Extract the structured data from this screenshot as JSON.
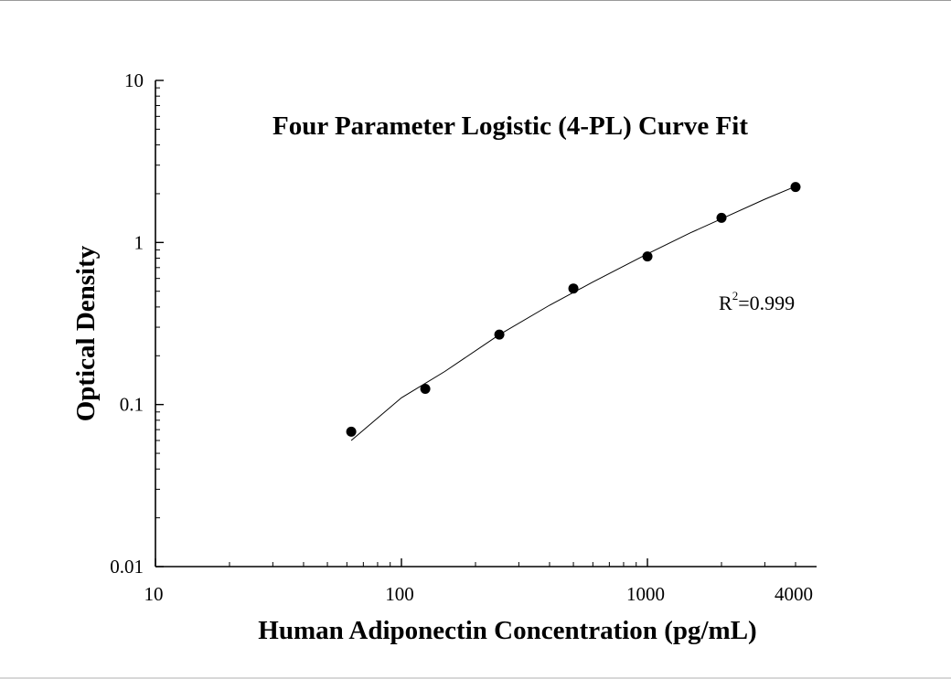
{
  "chart_data": {
    "type": "scatter",
    "title": "Four Parameter Logistic (4-PL) Curve Fit",
    "xlabel": "Human Adiponectin Concentration (pg/mL)",
    "ylabel": "Optical Density",
    "x_scale": "log",
    "y_scale": "log",
    "xlim": [
      10,
      4000
    ],
    "ylim": [
      0.01,
      10
    ],
    "x_ticks": [
      {
        "value": 10,
        "label": "10"
      },
      {
        "value": 100,
        "label": "100"
      },
      {
        "value": 1000,
        "label": "1000"
      },
      {
        "value": 4000,
        "label": "4000"
      }
    ],
    "y_ticks": [
      {
        "value": 10,
        "label": "10"
      },
      {
        "value": 1,
        "label": "1"
      },
      {
        "value": 0.1,
        "label": "0.1"
      },
      {
        "value": 0.01,
        "label": "0.01"
      }
    ],
    "grid": false,
    "series": [
      {
        "points": [
          {
            "x": 62.5,
            "y": 0.068
          },
          {
            "x": 125,
            "y": 0.125
          },
          {
            "x": 250,
            "y": 0.27
          },
          {
            "x": 500,
            "y": 0.52
          },
          {
            "x": 1000,
            "y": 0.82
          },
          {
            "x": 2000,
            "y": 1.42
          },
          {
            "x": 4000,
            "y": 2.2
          }
        ],
        "marker_color": "#000000"
      }
    ],
    "fit_curve": {
      "type": "4PL",
      "points": [
        {
          "x": 62.5,
          "y": 0.06
        },
        {
          "x": 100,
          "y": 0.11
        },
        {
          "x": 150,
          "y": 0.16
        },
        {
          "x": 250,
          "y": 0.27
        },
        {
          "x": 400,
          "y": 0.41
        },
        {
          "x": 600,
          "y": 0.57
        },
        {
          "x": 1000,
          "y": 0.85
        },
        {
          "x": 1500,
          "y": 1.15
        },
        {
          "x": 2000,
          "y": 1.4
        },
        {
          "x": 3000,
          "y": 1.85
        },
        {
          "x": 4000,
          "y": 2.22
        }
      ],
      "color": "#000000"
    },
    "annotation": {
      "prefix": "R",
      "superscript": "2",
      "suffix": "=0.999"
    }
  }
}
